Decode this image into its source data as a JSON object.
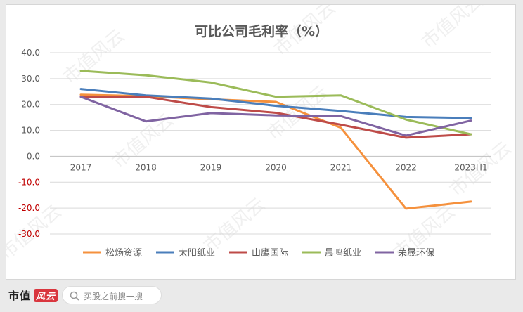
{
  "chart_data": {
    "type": "line",
    "title": "可比公司毛利率（%）",
    "xlabel": "",
    "ylabel": "",
    "categories": [
      "2017",
      "2018",
      "2019",
      "2020",
      "2021",
      "2022",
      "2023H1"
    ],
    "ylim": [
      -30,
      40
    ],
    "yticks": [
      "40.0",
      "30.0",
      "20.0",
      "10.0",
      "0.0",
      "-10.0",
      "-20.0",
      "-30.0"
    ],
    "ytick_values": [
      40,
      30,
      20,
      10,
      0,
      -10,
      -20,
      -30
    ],
    "grid": true,
    "legend_position": "bottom",
    "series": [
      {
        "name": "松炀资源",
        "color": "#f5913d",
        "values": [
          23.8,
          23.2,
          22.0,
          21.0,
          11.0,
          -20.2,
          -17.5
        ]
      },
      {
        "name": "太阳纸业",
        "color": "#4a7ebb",
        "values": [
          26.0,
          23.5,
          22.3,
          19.5,
          17.5,
          15.2,
          14.8
        ]
      },
      {
        "name": "山鹰国际",
        "color": "#be4b48",
        "values": [
          23.0,
          23.0,
          19.0,
          16.8,
          12.2,
          7.2,
          8.5
        ]
      },
      {
        "name": "晨鸣纸业",
        "color": "#9bbb59",
        "values": [
          33.0,
          31.3,
          28.5,
          23.0,
          23.5,
          14.2,
          8.5
        ]
      },
      {
        "name": "荣晟环保",
        "color": "#8064a2",
        "values": [
          23.0,
          13.5,
          16.7,
          15.8,
          15.5,
          8.0,
          13.8
        ]
      }
    ]
  },
  "footer": {
    "brand": "市值",
    "brand_seal": "风云",
    "search_placeholder": "买股之前搜一搜"
  },
  "watermark": "市值风云",
  "colors": {
    "axis_neg": "#c00000",
    "grid": "#d9d9d9",
    "text": "#595959"
  }
}
